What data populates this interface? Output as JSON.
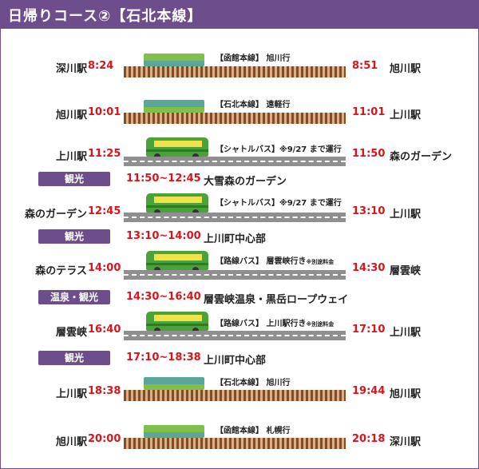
{
  "title": "日帰りコース②【石北本線】",
  "colors": {
    "purple": "#6e4d8c",
    "red": "#d9141b",
    "rail": "#8a4a1e",
    "train_green": "#7fbf4a",
    "train_teal": "#5aa79a",
    "bus_green": "#4aa23a"
  },
  "legs": [
    {
      "type": "train",
      "dep_station": "深川駅",
      "dep_time": "8:24",
      "arr_time": "8:51",
      "arr_station": "旭川駅",
      "service": "【函館本線】 旭川行",
      "note": ""
    },
    {
      "type": "train",
      "dep_station": "旭川駅",
      "dep_time": "10:01",
      "arr_time": "11:01",
      "arr_station": "上川駅",
      "service": "【石北本線】 遠軽行",
      "note": ""
    },
    {
      "type": "bus",
      "dep_station": "上川駅",
      "dep_time": "11:25",
      "arr_time": "11:50",
      "arr_station": "森のガーデン",
      "service": "【シャトルバス】※9/27 まで運行",
      "note": ""
    },
    {
      "type": "sight",
      "badge": "観光",
      "time": "11:50~12:45",
      "place": "大雪森のガーデン"
    },
    {
      "type": "bus",
      "dep_station": "森のガーデン",
      "dep_time": "12:45",
      "arr_time": "13:10",
      "arr_station": "上川駅",
      "service": "【シャトルバス】※9/27 まで運行",
      "note": ""
    },
    {
      "type": "sight",
      "badge": "観光",
      "time": "13:10~14:00",
      "place": "上川町中心部"
    },
    {
      "type": "bus",
      "dep_station": "森のテラス",
      "dep_time": "14:00",
      "arr_time": "14:30",
      "arr_station": "層雲峡",
      "service": "【路線バス】 層雲峡行き",
      "note": "※別途料金"
    },
    {
      "type": "sight",
      "badge": "温泉・観光",
      "time": "14:30~16:40",
      "place": "層雲峡温泉・黒岳ロープウェイ"
    },
    {
      "type": "bus",
      "dep_station": "層雲峡",
      "dep_time": "16:40",
      "arr_time": "17:10",
      "arr_station": "上川駅",
      "service": "【路線バス】 上川駅行き",
      "note": "※別途料金"
    },
    {
      "type": "sight",
      "badge": "観光",
      "time": "17:10~18:38",
      "place": "上川町中心部"
    },
    {
      "type": "train",
      "dep_station": "上川駅",
      "dep_time": "18:38",
      "arr_time": "19:44",
      "arr_station": "旭川駅",
      "service": "【石北本線】 旭川行",
      "note": ""
    },
    {
      "type": "train",
      "dep_station": "旭川駅",
      "dep_time": "20:00",
      "arr_time": "20:18",
      "arr_station": "深川駅",
      "service": "【函館本線】 札幌行",
      "note": ""
    }
  ]
}
